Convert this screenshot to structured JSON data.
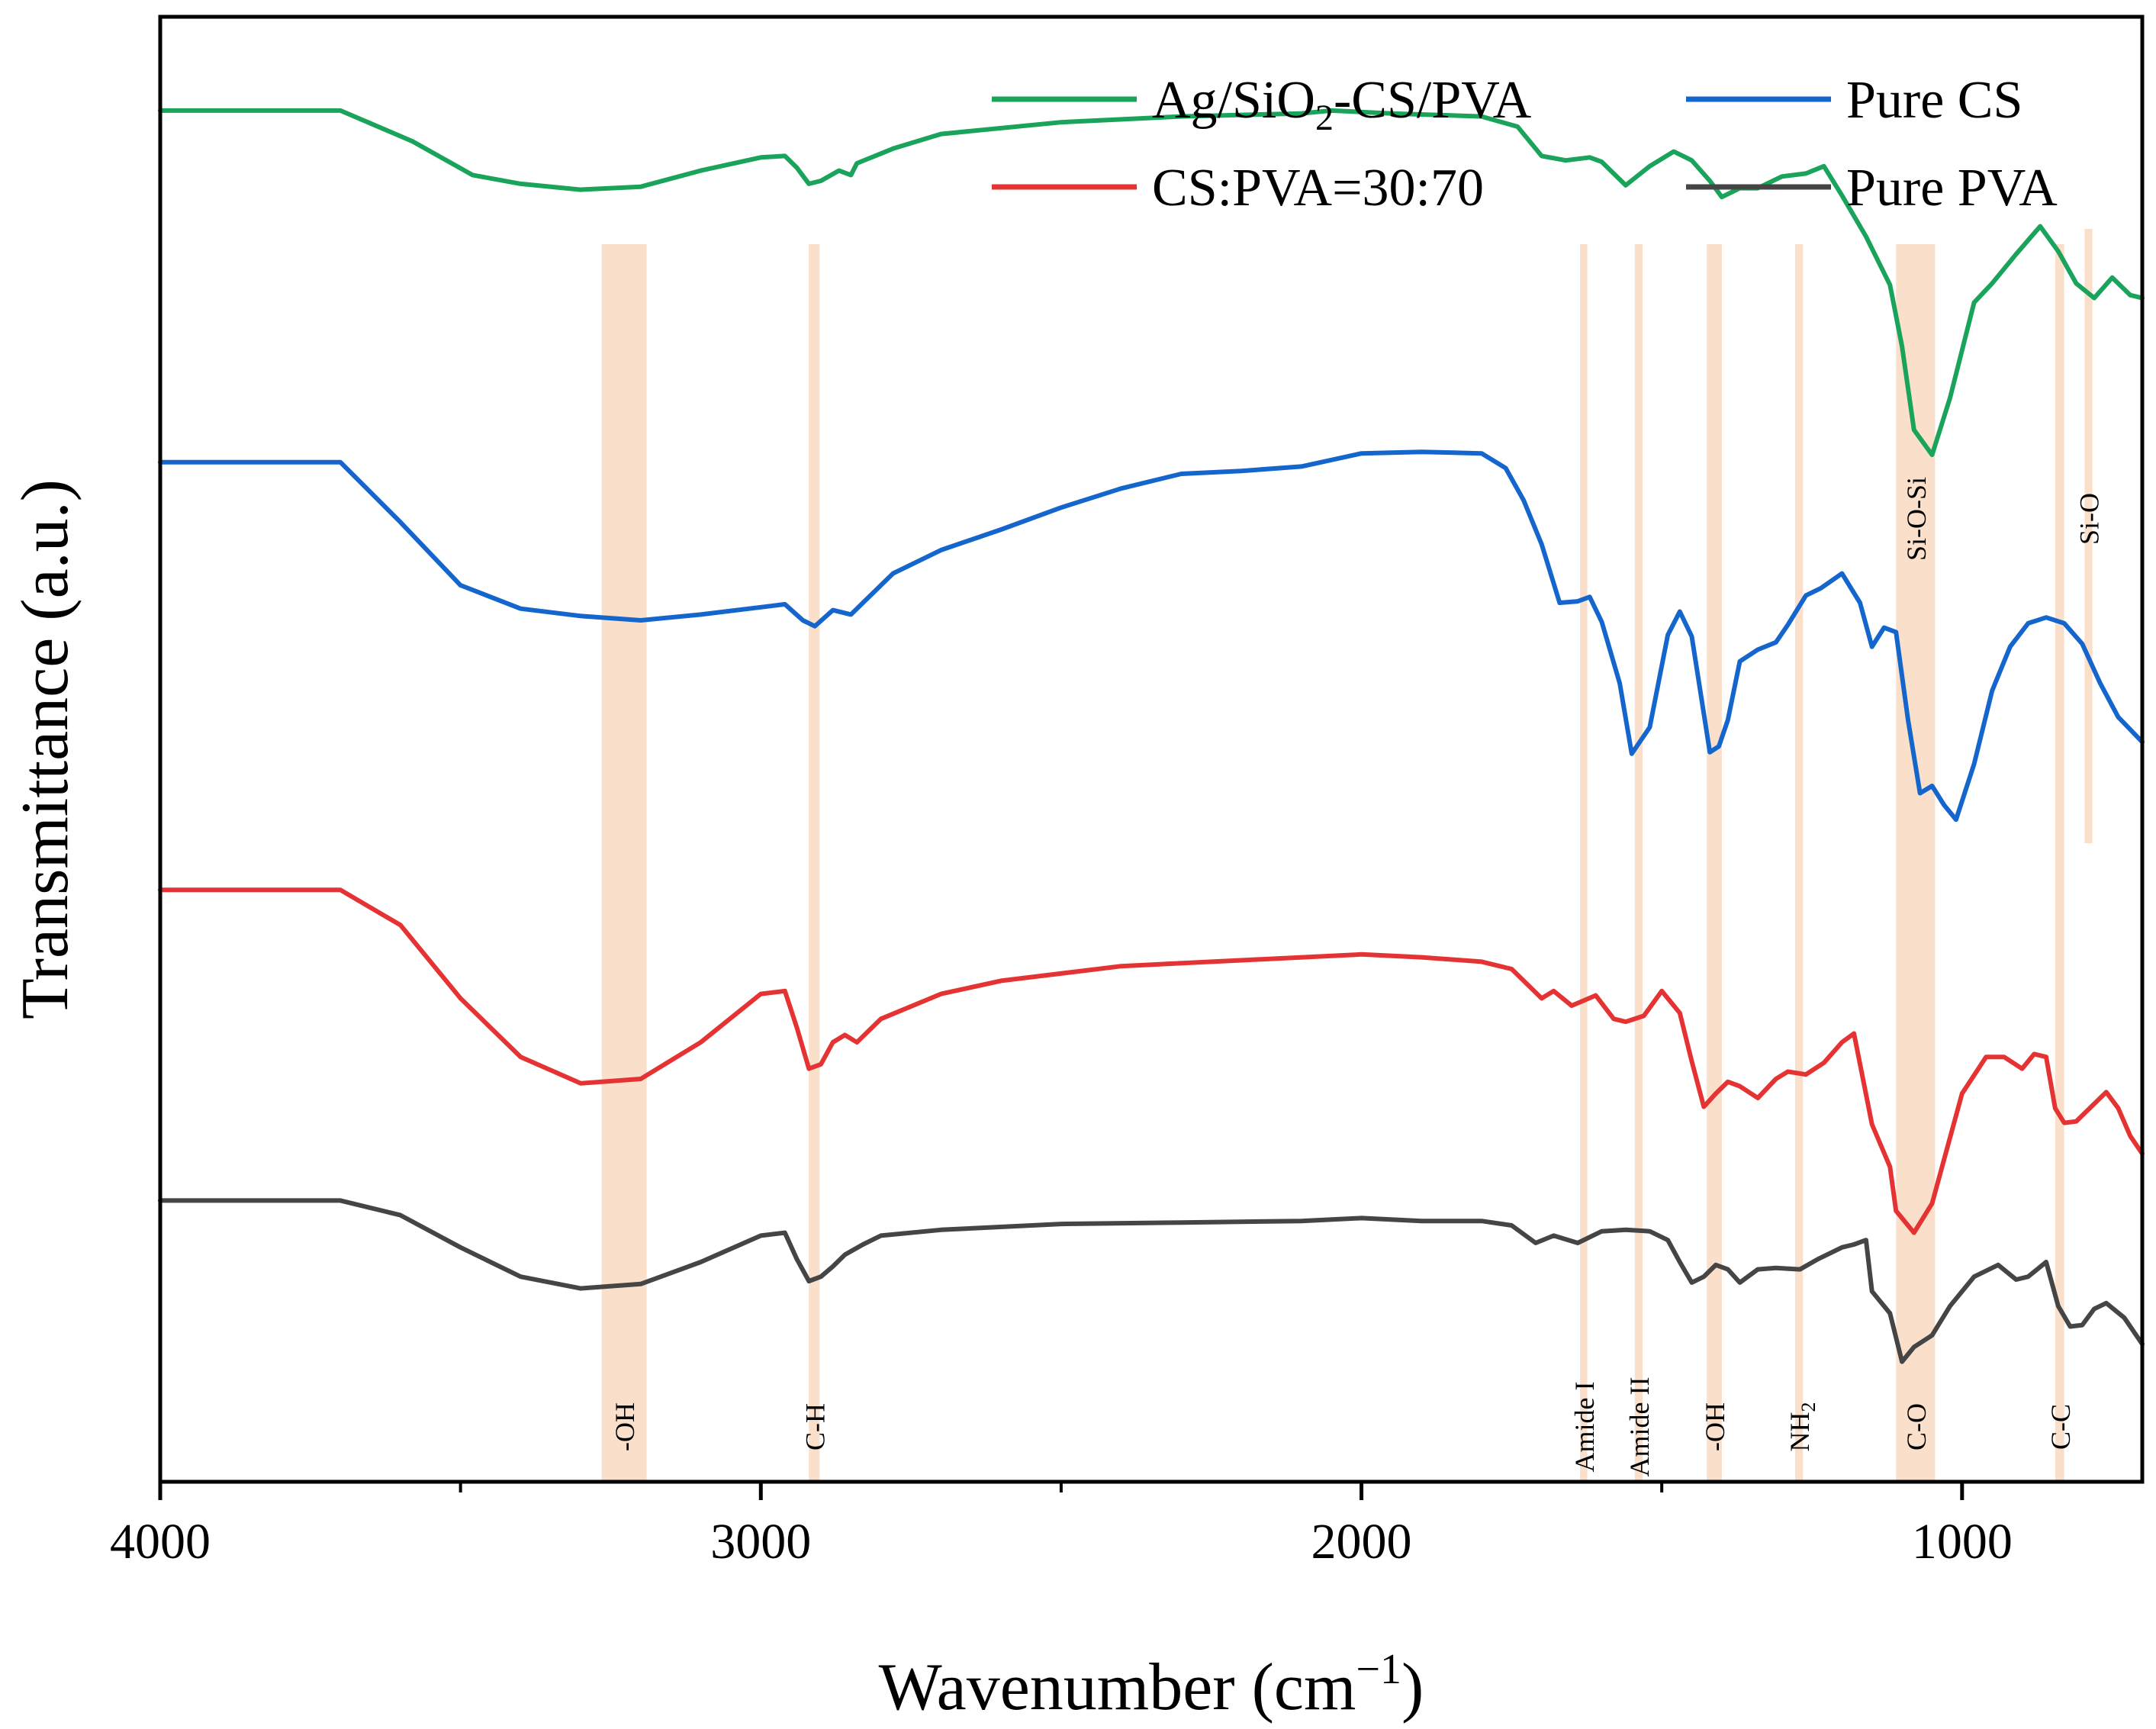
{
  "chart_data": {
    "type": "line",
    "title": "",
    "xlabel": "Wavenumber (cm",
    "xlabel_sup": "−1",
    "xlabel_end": ")",
    "ylabel": "Transmittance (a.u.)",
    "xlim": [
      4000,
      700
    ],
    "x_reversed": true,
    "ylim": [
      0,
      1
    ],
    "grid": false,
    "legend_position": "top-right",
    "x_ticks": [
      4000,
      3000,
      2000,
      1000
    ],
    "x_minor_ticks": [
      3500,
      2500,
      1500
    ],
    "series": [
      {
        "name": "Ag/SiO2-CS/PVA",
        "legend_label_main": "Ag/SiO",
        "legend_label_sub": "2",
        "legend_label_end": "-CS/PVA",
        "color": "#1aa35a",
        "points": [
          [
            4000,
            0.936
          ],
          [
            3700,
            0.936
          ],
          [
            3580,
            0.915
          ],
          [
            3480,
            0.892
          ],
          [
            3400,
            0.886
          ],
          [
            3300,
            0.882
          ],
          [
            3200,
            0.884
          ],
          [
            3100,
            0.895
          ],
          [
            3000,
            0.904
          ],
          [
            2960,
            0.905
          ],
          [
            2940,
            0.897
          ],
          [
            2920,
            0.886
          ],
          [
            2900,
            0.888
          ],
          [
            2870,
            0.895
          ],
          [
            2850,
            0.892
          ],
          [
            2840,
            0.9
          ],
          [
            2780,
            0.91
          ],
          [
            2700,
            0.92
          ],
          [
            2500,
            0.928
          ],
          [
            2300,
            0.932
          ],
          [
            2100,
            0.934
          ],
          [
            2050,
            0.936
          ],
          [
            1950,
            0.934
          ],
          [
            1800,
            0.932
          ],
          [
            1740,
            0.925
          ],
          [
            1700,
            0.905
          ],
          [
            1660,
            0.902
          ],
          [
            1620,
            0.904
          ],
          [
            1600,
            0.901
          ],
          [
            1560,
            0.885
          ],
          [
            1520,
            0.898
          ],
          [
            1480,
            0.908
          ],
          [
            1450,
            0.902
          ],
          [
            1420,
            0.888
          ],
          [
            1400,
            0.877
          ],
          [
            1370,
            0.883
          ],
          [
            1340,
            0.883
          ],
          [
            1300,
            0.891
          ],
          [
            1260,
            0.893
          ],
          [
            1230,
            0.898
          ],
          [
            1200,
            0.878
          ],
          [
            1160,
            0.85
          ],
          [
            1120,
            0.817
          ],
          [
            1100,
            0.775
          ],
          [
            1080,
            0.718
          ],
          [
            1050,
            0.701
          ],
          [
            1020,
            0.74
          ],
          [
            980,
            0.805
          ],
          [
            950,
            0.818
          ],
          [
            910,
            0.838
          ],
          [
            870,
            0.857
          ],
          [
            840,
            0.84
          ],
          [
            810,
            0.818
          ],
          [
            780,
            0.808
          ],
          [
            750,
            0.822
          ],
          [
            720,
            0.81
          ],
          [
            700,
            0.808
          ]
        ]
      },
      {
        "name": "Pure CS",
        "legend_label_main": "Pure CS",
        "color": "#1466cc",
        "points": [
          [
            4000,
            0.696
          ],
          [
            3700,
            0.696
          ],
          [
            3600,
            0.655
          ],
          [
            3500,
            0.612
          ],
          [
            3400,
            0.596
          ],
          [
            3300,
            0.591
          ],
          [
            3200,
            0.588
          ],
          [
            3100,
            0.592
          ],
          [
            3000,
            0.597
          ],
          [
            2960,
            0.599
          ],
          [
            2930,
            0.588
          ],
          [
            2910,
            0.584
          ],
          [
            2880,
            0.595
          ],
          [
            2850,
            0.592
          ],
          [
            2830,
            0.6
          ],
          [
            2780,
            0.62
          ],
          [
            2700,
            0.636
          ],
          [
            2600,
            0.65
          ],
          [
            2500,
            0.665
          ],
          [
            2400,
            0.678
          ],
          [
            2300,
            0.688
          ],
          [
            2200,
            0.69
          ],
          [
            2100,
            0.693
          ],
          [
            2000,
            0.702
          ],
          [
            1900,
            0.703
          ],
          [
            1800,
            0.702
          ],
          [
            1760,
            0.692
          ],
          [
            1730,
            0.67
          ],
          [
            1700,
            0.64
          ],
          [
            1670,
            0.6
          ],
          [
            1640,
            0.601
          ],
          [
            1620,
            0.604
          ],
          [
            1600,
            0.587
          ],
          [
            1570,
            0.545
          ],
          [
            1550,
            0.497
          ],
          [
            1520,
            0.515
          ],
          [
            1490,
            0.578
          ],
          [
            1470,
            0.594
          ],
          [
            1450,
            0.577
          ],
          [
            1420,
            0.498
          ],
          [
            1405,
            0.502
          ],
          [
            1390,
            0.52
          ],
          [
            1370,
            0.56
          ],
          [
            1340,
            0.568
          ],
          [
            1310,
            0.573
          ],
          [
            1290,
            0.585
          ],
          [
            1260,
            0.605
          ],
          [
            1235,
            0.61
          ],
          [
            1200,
            0.62
          ],
          [
            1170,
            0.6
          ],
          [
            1150,
            0.57
          ],
          [
            1130,
            0.583
          ],
          [
            1110,
            0.58
          ],
          [
            1090,
            0.52
          ],
          [
            1070,
            0.47
          ],
          [
            1050,
            0.475
          ],
          [
            1030,
            0.462
          ],
          [
            1010,
            0.452
          ],
          [
            980,
            0.49
          ],
          [
            950,
            0.54
          ],
          [
            920,
            0.57
          ],
          [
            890,
            0.586
          ],
          [
            860,
            0.59
          ],
          [
            830,
            0.586
          ],
          [
            800,
            0.572
          ],
          [
            770,
            0.545
          ],
          [
            740,
            0.522
          ],
          [
            700,
            0.505
          ]
        ]
      },
      {
        "name": "CS:PVA=30:70",
        "legend_label_main": "CS:PVA=30:70",
        "color": "#e53333",
        "points": [
          [
            4000,
            0.404
          ],
          [
            3700,
            0.404
          ],
          [
            3600,
            0.38
          ],
          [
            3500,
            0.33
          ],
          [
            3400,
            0.29
          ],
          [
            3300,
            0.272
          ],
          [
            3200,
            0.275
          ],
          [
            3100,
            0.3
          ],
          [
            3000,
            0.333
          ],
          [
            2960,
            0.335
          ],
          [
            2940,
            0.31
          ],
          [
            2920,
            0.282
          ],
          [
            2900,
            0.285
          ],
          [
            2880,
            0.3
          ],
          [
            2860,
            0.305
          ],
          [
            2840,
            0.3
          ],
          [
            2800,
            0.316
          ],
          [
            2700,
            0.333
          ],
          [
            2600,
            0.342
          ],
          [
            2400,
            0.352
          ],
          [
            2200,
            0.356
          ],
          [
            2000,
            0.36
          ],
          [
            1900,
            0.358
          ],
          [
            1800,
            0.355
          ],
          [
            1750,
            0.35
          ],
          [
            1700,
            0.33
          ],
          [
            1680,
            0.335
          ],
          [
            1650,
            0.325
          ],
          [
            1610,
            0.332
          ],
          [
            1580,
            0.316
          ],
          [
            1560,
            0.314
          ],
          [
            1530,
            0.318
          ],
          [
            1500,
            0.335
          ],
          [
            1470,
            0.32
          ],
          [
            1450,
            0.287
          ],
          [
            1430,
            0.256
          ],
          [
            1410,
            0.265
          ],
          [
            1390,
            0.273
          ],
          [
            1370,
            0.27
          ],
          [
            1340,
            0.262
          ],
          [
            1310,
            0.275
          ],
          [
            1290,
            0.28
          ],
          [
            1260,
            0.278
          ],
          [
            1230,
            0.286
          ],
          [
            1200,
            0.3
          ],
          [
            1180,
            0.306
          ],
          [
            1150,
            0.244
          ],
          [
            1120,
            0.215
          ],
          [
            1110,
            0.185
          ],
          [
            1080,
            0.17
          ],
          [
            1050,
            0.19
          ],
          [
            1030,
            0.22
          ],
          [
            1000,
            0.265
          ],
          [
            960,
            0.29
          ],
          [
            930,
            0.29
          ],
          [
            900,
            0.282
          ],
          [
            880,
            0.292
          ],
          [
            860,
            0.29
          ],
          [
            845,
            0.255
          ],
          [
            830,
            0.245
          ],
          [
            810,
            0.246
          ],
          [
            780,
            0.258
          ],
          [
            760,
            0.266
          ],
          [
            740,
            0.255
          ],
          [
            720,
            0.236
          ],
          [
            700,
            0.224
          ]
        ]
      },
      {
        "name": "Pure PVA",
        "legend_label_main": "Pure PVA",
        "color": "#454545",
        "points": [
          [
            4000,
            0.192
          ],
          [
            3700,
            0.192
          ],
          [
            3600,
            0.182
          ],
          [
            3500,
            0.16
          ],
          [
            3400,
            0.14
          ],
          [
            3300,
            0.132
          ],
          [
            3200,
            0.135
          ],
          [
            3100,
            0.15
          ],
          [
            3000,
            0.168
          ],
          [
            2960,
            0.17
          ],
          [
            2940,
            0.152
          ],
          [
            2920,
            0.137
          ],
          [
            2900,
            0.14
          ],
          [
            2880,
            0.147
          ],
          [
            2860,
            0.155
          ],
          [
            2830,
            0.162
          ],
          [
            2800,
            0.168
          ],
          [
            2700,
            0.172
          ],
          [
            2500,
            0.176
          ],
          [
            2300,
            0.177
          ],
          [
            2100,
            0.178
          ],
          [
            2000,
            0.18
          ],
          [
            1900,
            0.178
          ],
          [
            1800,
            0.178
          ],
          [
            1750,
            0.175
          ],
          [
            1710,
            0.163
          ],
          [
            1680,
            0.168
          ],
          [
            1640,
            0.163
          ],
          [
            1600,
            0.171
          ],
          [
            1560,
            0.172
          ],
          [
            1520,
            0.171
          ],
          [
            1490,
            0.165
          ],
          [
            1470,
            0.15
          ],
          [
            1450,
            0.136
          ],
          [
            1430,
            0.14
          ],
          [
            1410,
            0.148
          ],
          [
            1390,
            0.145
          ],
          [
            1370,
            0.136
          ],
          [
            1340,
            0.145
          ],
          [
            1310,
            0.146
          ],
          [
            1270,
            0.145
          ],
          [
            1240,
            0.152
          ],
          [
            1200,
            0.16
          ],
          [
            1180,
            0.162
          ],
          [
            1160,
            0.165
          ],
          [
            1150,
            0.13
          ],
          [
            1120,
            0.115
          ],
          [
            1100,
            0.082
          ],
          [
            1080,
            0.092
          ],
          [
            1050,
            0.1
          ],
          [
            1020,
            0.12
          ],
          [
            980,
            0.14
          ],
          [
            940,
            0.148
          ],
          [
            910,
            0.138
          ],
          [
            890,
            0.14
          ],
          [
            860,
            0.15
          ],
          [
            840,
            0.12
          ],
          [
            820,
            0.106
          ],
          [
            800,
            0.107
          ],
          [
            780,
            0.118
          ],
          [
            760,
            0.122
          ],
          [
            730,
            0.112
          ],
          [
            700,
            0.094
          ]
        ]
      }
    ],
    "bands": [
      {
        "label": "-OH",
        "from": 3265,
        "to": 3190
      },
      {
        "label": "C-H",
        "from": 2920,
        "to": 2902
      },
      {
        "label": "Amide I",
        "from": 1636,
        "to": 1624
      },
      {
        "label": "Amide II",
        "from": 1545,
        "to": 1532
      },
      {
        "label": "-OH",
        "from": 1425,
        "to": 1400
      },
      {
        "label": "NH",
        "label_sub": "2",
        "from": 1278,
        "to": 1265
      },
      {
        "label": "C-O",
        "from": 1110,
        "to": 1045
      },
      {
        "label": "Si-O-Si",
        "from": 1110,
        "to": 1045
      },
      {
        "label": "C-C",
        "from": 845,
        "to": 830
      },
      {
        "label": "Si-O",
        "from": 796,
        "to": 783
      }
    ],
    "band_color": "#f9d9c2"
  }
}
